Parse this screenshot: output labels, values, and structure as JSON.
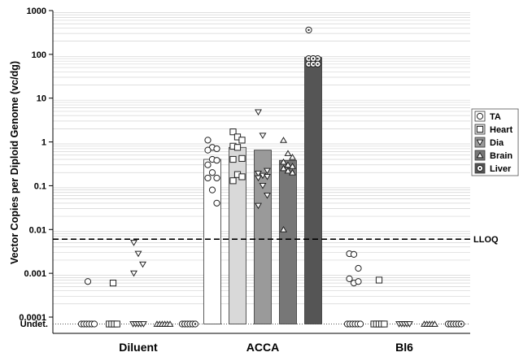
{
  "chart_data": {
    "type": "bar",
    "ylabel": "Vector Copies per Diploid Genome (vc/dg)",
    "yscale": "log",
    "ylim": [
      0.0001,
      1000
    ],
    "yticks": [
      "1000",
      "100",
      "10",
      "1",
      "0.1",
      "0.01",
      "0.001",
      "0.0001"
    ],
    "undetected_label": "Undet.",
    "lloq": {
      "label": "LLOQ",
      "value": 0.006
    },
    "grid": "horizontal minor (log)",
    "legend_position": "right",
    "categories": [
      "Diluent",
      "ACCA",
      "Bl6"
    ],
    "series": [
      {
        "name": "TA",
        "marker": "circle",
        "fill": "#ffffff",
        "bar_values": [
          null,
          0.4,
          null
        ],
        "points": [
          {
            "detected": [
              0.00065
            ],
            "undetected": 6
          },
          {
            "detected": [
              1.1,
              0.75,
              0.7,
              0.65,
              0.4,
              0.38,
              0.3,
              0.2,
              0.15,
              0.15,
              0.08,
              0.04
            ],
            "undetected": 0
          },
          {
            "detected": [
              0.0028,
              0.0027,
              0.0013,
              0.00075,
              0.0006,
              0.00065
            ],
            "undetected": 6
          }
        ]
      },
      {
        "name": "Heart",
        "marker": "square",
        "fill": "#d9d9d9",
        "bar_values": [
          null,
          0.75,
          null
        ],
        "points": [
          {
            "detected": [
              0.0006
            ],
            "undetected": 4
          },
          {
            "detected": [
              1.7,
              1.3,
              1.1,
              0.8,
              0.75,
              0.42,
              0.4,
              0.18,
              0.16,
              0.13
            ],
            "undetected": 0
          },
          {
            "detected": [
              0.0007
            ],
            "undetected": 5
          }
        ]
      },
      {
        "name": "Dia",
        "marker": "triangle-down",
        "fill": "#9a9a9a",
        "bar_values": [
          null,
          0.65,
          null
        ],
        "points": [
          {
            "detected": [
              0.005,
              0.0028,
              0.0016,
              0.001
            ],
            "undetected": 5
          },
          {
            "detected": [
              4.8,
              1.4,
              0.22,
              0.19,
              0.17,
              0.16,
              0.15,
              0.1,
              0.06,
              0.035
            ],
            "undetected": 0
          },
          {
            "detected": [],
            "undetected": 5
          }
        ]
      },
      {
        "name": "Brain",
        "marker": "triangle-up",
        "fill": "#777777",
        "bar_values": [
          null,
          0.38,
          null
        ],
        "points": [
          {
            "detected": [],
            "undetected": 6
          },
          {
            "detected": [
              1.1,
              0.55,
              0.45,
              0.35,
              0.3,
              0.28,
              0.25,
              0.22,
              0.2,
              0.01
            ],
            "undetected": 0
          },
          {
            "detected": [],
            "undetected": 5
          }
        ]
      },
      {
        "name": "Liver",
        "marker": "dotted-circle",
        "fill": "#555555",
        "bar_values": [
          null,
          85,
          null
        ],
        "points": [
          {
            "detected": [],
            "undetected": 6
          },
          {
            "detected": [
              360,
              80,
              80,
              80,
              80,
              60,
              60,
              60,
              60
            ],
            "undetected": 0
          },
          {
            "detected": [],
            "undetected": 6
          }
        ]
      }
    ]
  }
}
